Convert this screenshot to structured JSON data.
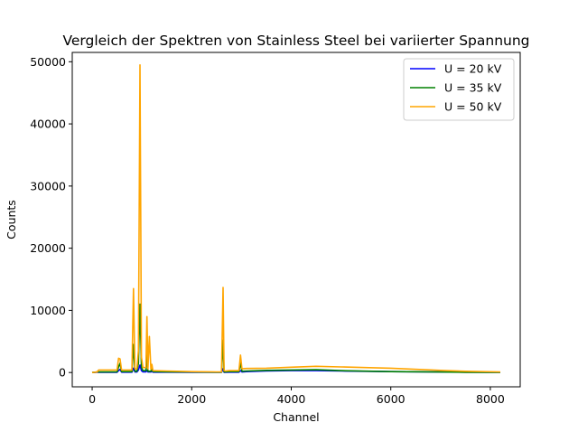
{
  "chart_data": {
    "type": "line",
    "title": "Vergleich der Spektren von Stainless Steel bei variierter Spannung",
    "xlabel": "Channel",
    "ylabel": "Counts",
    "xlim": [
      -400,
      8600
    ],
    "ylim": [
      -2300,
      51500
    ],
    "xticks": [
      0,
      2000,
      4000,
      6000,
      8000
    ],
    "yticks": [
      0,
      10000,
      20000,
      30000,
      40000,
      50000
    ],
    "grid": false,
    "legend_position": "top-right",
    "series": [
      {
        "name": "U = 20 kV",
        "color": "#0000ff",
        "x": [
          0,
          100,
          500,
          530,
          560,
          590,
          800,
          830,
          860,
          900,
          930,
          960,
          990,
          1020,
          1080,
          1100,
          1120,
          1180,
          1200,
          1220,
          1500,
          2000,
          2500,
          2600,
          2630,
          2650,
          2680,
          2750,
          2950,
          2980,
          3010,
          3100,
          3500,
          4000,
          4500,
          5000,
          6000,
          7000,
          7500,
          8200
        ],
        "y": [
          0,
          30,
          40,
          300,
          500,
          60,
          60,
          700,
          80,
          80,
          400,
          1200,
          300,
          100,
          100,
          350,
          80,
          80,
          200,
          60,
          50,
          40,
          40,
          40,
          600,
          40,
          40,
          60,
          60,
          300,
          80,
          150,
          250,
          300,
          300,
          250,
          150,
          80,
          50,
          30
        ]
      },
      {
        "name": "U = 35 kV",
        "color": "#008000",
        "x": [
          0,
          100,
          500,
          530,
          560,
          590,
          800,
          830,
          860,
          900,
          930,
          960,
          990,
          1020,
          1080,
          1100,
          1120,
          1180,
          1200,
          1220,
          1500,
          2000,
          2500,
          2600,
          2630,
          2650,
          2680,
          2750,
          2950,
          2980,
          3010,
          3100,
          3500,
          4000,
          4500,
          5000,
          6000,
          7000,
          7500,
          8200
        ],
        "y": [
          0,
          80,
          100,
          900,
          1500,
          150,
          150,
          4500,
          200,
          200,
          1500,
          11000,
          800,
          300,
          300,
          3000,
          200,
          200,
          700,
          150,
          100,
          80,
          60,
          60,
          5200,
          100,
          100,
          150,
          150,
          1600,
          200,
          250,
          350,
          400,
          450,
          300,
          150,
          80,
          40,
          20
        ]
      },
      {
        "name": "U = 50 kV",
        "color": "#ffa500",
        "x": [
          0,
          100,
          130,
          500,
          530,
          560,
          590,
          800,
          830,
          860,
          900,
          930,
          960,
          990,
          1020,
          1080,
          1100,
          1120,
          1150,
          1180,
          1200,
          1220,
          1500,
          2000,
          2500,
          2600,
          2630,
          2650,
          2680,
          2750,
          2950,
          2980,
          3010,
          3100,
          3500,
          4000,
          4500,
          5000,
          6000,
          7000,
          7500,
          8200
        ],
        "y": [
          0,
          80,
          400,
          400,
          2300,
          2200,
          400,
          400,
          13500,
          600,
          600,
          3500,
          49500,
          2500,
          800,
          800,
          9000,
          600,
          5800,
          500,
          1300,
          300,
          250,
          150,
          100,
          100,
          13700,
          300,
          250,
          300,
          300,
          2800,
          600,
          650,
          700,
          850,
          1000,
          900,
          700,
          350,
          200,
          100
        ]
      }
    ]
  }
}
